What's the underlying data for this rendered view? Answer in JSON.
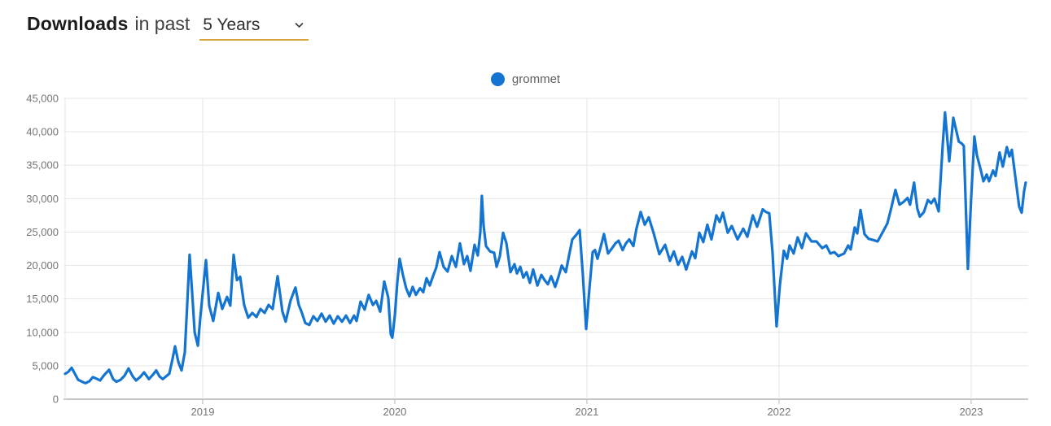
{
  "header": {
    "title": "Downloads",
    "subtitle": "in past",
    "range_select": {
      "value": "5 Years"
    }
  },
  "legend": [
    {
      "label": "grommet",
      "color": "#1474d2"
    }
  ],
  "colors": {
    "series_blue": "#1474d2",
    "select_underline": "#d9a43b",
    "gridline": "#e6e6e6",
    "axis_line": "#b3b3b3",
    "tick_text": "#757575"
  },
  "chart_data": {
    "type": "line",
    "title": "Downloads in past 5 Years",
    "xlabel": "",
    "ylabel": "",
    "interval": "weekly",
    "x_unit": "decimal_year",
    "grid": true,
    "legend_position": "top-center",
    "x_range": [
      2018.284,
      2023.297
    ],
    "y_range": [
      0,
      45000
    ],
    "x_ticks": [
      2019,
      2020,
      2021,
      2022,
      2023
    ],
    "x_tick_labels": [
      "2019",
      "2020",
      "2021",
      "2022",
      "2023"
    ],
    "y_ticks": [
      0,
      5000,
      10000,
      15000,
      20000,
      25000,
      30000,
      35000,
      40000,
      45000
    ],
    "y_tick_labels": [
      "0",
      "5,000",
      "10,000",
      "15,000",
      "20,000",
      "25,000",
      "30,000",
      "35,000",
      "40,000",
      "45,000"
    ],
    "series": [
      {
        "name": "grommet",
        "color": "#1474d2",
        "points": [
          [
            2018.284,
            3800
          ],
          [
            2018.301,
            4100
          ],
          [
            2018.318,
            4700
          ],
          [
            2018.335,
            3800
          ],
          [
            2018.352,
            2900
          ],
          [
            2018.373,
            2600
          ],
          [
            2018.39,
            2400
          ],
          [
            2018.411,
            2700
          ],
          [
            2018.428,
            3300
          ],
          [
            2018.445,
            3100
          ],
          [
            2018.466,
            2800
          ],
          [
            2018.487,
            3600
          ],
          [
            2018.513,
            4400
          ],
          [
            2018.534,
            3000
          ],
          [
            2018.551,
            2600
          ],
          [
            2018.572,
            2900
          ],
          [
            2018.593,
            3500
          ],
          [
            2018.614,
            4600
          ],
          [
            2018.636,
            3400
          ],
          [
            2018.653,
            2800
          ],
          [
            2018.674,
            3300
          ],
          [
            2018.695,
            4000
          ],
          [
            2018.72,
            3000
          ],
          [
            2018.742,
            3700
          ],
          [
            2018.758,
            4300
          ],
          [
            2018.775,
            3400
          ],
          [
            2018.792,
            3000
          ],
          [
            2018.809,
            3400
          ],
          [
            2018.826,
            3800
          ],
          [
            2018.843,
            6000
          ],
          [
            2018.856,
            7900
          ],
          [
            2018.873,
            5600
          ],
          [
            2018.89,
            4300
          ],
          [
            2018.907,
            7000
          ],
          [
            2018.919,
            14000
          ],
          [
            2018.932,
            21600
          ],
          [
            2018.945,
            16000
          ],
          [
            2018.958,
            10000
          ],
          [
            2018.975,
            8000
          ],
          [
            2018.987,
            12000
          ],
          [
            2019.004,
            17000
          ],
          [
            2019.017,
            20800
          ],
          [
            2019.034,
            14000
          ],
          [
            2019.055,
            11700
          ],
          [
            2019.081,
            15900
          ],
          [
            2019.102,
            13500
          ],
          [
            2019.127,
            15300
          ],
          [
            2019.144,
            14000
          ],
          [
            2019.161,
            21600
          ],
          [
            2019.178,
            17800
          ],
          [
            2019.195,
            18300
          ],
          [
            2019.216,
            14100
          ],
          [
            2019.237,
            12200
          ],
          [
            2019.258,
            12900
          ],
          [
            2019.28,
            12300
          ],
          [
            2019.301,
            13500
          ],
          [
            2019.322,
            12900
          ],
          [
            2019.343,
            14100
          ],
          [
            2019.364,
            13500
          ],
          [
            2019.39,
            18400
          ],
          [
            2019.415,
            13100
          ],
          [
            2019.432,
            11600
          ],
          [
            2019.458,
            14800
          ],
          [
            2019.483,
            16700
          ],
          [
            2019.5,
            14100
          ],
          [
            2019.513,
            13200
          ],
          [
            2019.534,
            11400
          ],
          [
            2019.555,
            11100
          ],
          [
            2019.576,
            12400
          ],
          [
            2019.597,
            11700
          ],
          [
            2019.619,
            12800
          ],
          [
            2019.64,
            11600
          ],
          [
            2019.661,
            12500
          ],
          [
            2019.682,
            11300
          ],
          [
            2019.703,
            12400
          ],
          [
            2019.725,
            11600
          ],
          [
            2019.746,
            12500
          ],
          [
            2019.767,
            11400
          ],
          [
            2019.788,
            12500
          ],
          [
            2019.801,
            11700
          ],
          [
            2019.822,
            14600
          ],
          [
            2019.843,
            13400
          ],
          [
            2019.864,
            15600
          ],
          [
            2019.886,
            14100
          ],
          [
            2019.903,
            14700
          ],
          [
            2019.924,
            13100
          ],
          [
            2019.945,
            17600
          ],
          [
            2019.966,
            15200
          ],
          [
            2019.979,
            9700
          ],
          [
            2019.987,
            9200
          ],
          [
            2020.0,
            12500
          ],
          [
            2020.013,
            17400
          ],
          [
            2020.025,
            21000
          ],
          [
            2020.042,
            18600
          ],
          [
            2020.059,
            16600
          ],
          [
            2020.076,
            15400
          ],
          [
            2020.093,
            16800
          ],
          [
            2020.11,
            15600
          ],
          [
            2020.131,
            16600
          ],
          [
            2020.148,
            16000
          ],
          [
            2020.165,
            18100
          ],
          [
            2020.182,
            17000
          ],
          [
            2020.199,
            18400
          ],
          [
            2020.216,
            19700
          ],
          [
            2020.233,
            22000
          ],
          [
            2020.254,
            19800
          ],
          [
            2020.275,
            19100
          ],
          [
            2020.297,
            21400
          ],
          [
            2020.318,
            19800
          ],
          [
            2020.339,
            23300
          ],
          [
            2020.36,
            20200
          ],
          [
            2020.377,
            21400
          ],
          [
            2020.394,
            19200
          ],
          [
            2020.415,
            23100
          ],
          [
            2020.432,
            21500
          ],
          [
            2020.445,
            25000
          ],
          [
            2020.453,
            30400
          ],
          [
            2020.462,
            26000
          ],
          [
            2020.475,
            22900
          ],
          [
            2020.496,
            22100
          ],
          [
            2020.517,
            21900
          ],
          [
            2020.53,
            19800
          ],
          [
            2020.547,
            21400
          ],
          [
            2020.564,
            24900
          ],
          [
            2020.581,
            23300
          ],
          [
            2020.602,
            19000
          ],
          [
            2020.623,
            20200
          ],
          [
            2020.636,
            18800
          ],
          [
            2020.653,
            19800
          ],
          [
            2020.669,
            18200
          ],
          [
            2020.686,
            19000
          ],
          [
            2020.703,
            17400
          ],
          [
            2020.72,
            19400
          ],
          [
            2020.742,
            17000
          ],
          [
            2020.763,
            18600
          ],
          [
            2020.78,
            17800
          ],
          [
            2020.797,
            17200
          ],
          [
            2020.814,
            18400
          ],
          [
            2020.835,
            16800
          ],
          [
            2020.852,
            18300
          ],
          [
            2020.869,
            20000
          ],
          [
            2020.89,
            19000
          ],
          [
            2020.907,
            21500
          ],
          [
            2020.924,
            23900
          ],
          [
            2020.945,
            24600
          ],
          [
            2020.962,
            25300
          ],
          [
            2020.979,
            18500
          ],
          [
            2020.996,
            10500
          ],
          [
            2021.013,
            16500
          ],
          [
            2021.03,
            22000
          ],
          [
            2021.042,
            22300
          ],
          [
            2021.055,
            21000
          ],
          [
            2021.072,
            22800
          ],
          [
            2021.089,
            24700
          ],
          [
            2021.11,
            21800
          ],
          [
            2021.131,
            22600
          ],
          [
            2021.148,
            23300
          ],
          [
            2021.165,
            23700
          ],
          [
            2021.186,
            22300
          ],
          [
            2021.203,
            23300
          ],
          [
            2021.22,
            23900
          ],
          [
            2021.242,
            22900
          ],
          [
            2021.258,
            25500
          ],
          [
            2021.28,
            28000
          ],
          [
            2021.301,
            26100
          ],
          [
            2021.322,
            27200
          ],
          [
            2021.347,
            24900
          ],
          [
            2021.377,
            21700
          ],
          [
            2021.407,
            23100
          ],
          [
            2021.432,
            20700
          ],
          [
            2021.453,
            22100
          ],
          [
            2021.475,
            20100
          ],
          [
            2021.496,
            21300
          ],
          [
            2021.517,
            19400
          ],
          [
            2021.547,
            22100
          ],
          [
            2021.564,
            21100
          ],
          [
            2021.585,
            24900
          ],
          [
            2021.606,
            23500
          ],
          [
            2021.627,
            26100
          ],
          [
            2021.648,
            23900
          ],
          [
            2021.674,
            27500
          ],
          [
            2021.691,
            26500
          ],
          [
            2021.708,
            27900
          ],
          [
            2021.733,
            24900
          ],
          [
            2021.754,
            25900
          ],
          [
            2021.784,
            23900
          ],
          [
            2021.814,
            25500
          ],
          [
            2021.835,
            24300
          ],
          [
            2021.864,
            27500
          ],
          [
            2021.886,
            25800
          ],
          [
            2021.915,
            28400
          ],
          [
            2021.932,
            28000
          ],
          [
            2021.949,
            27800
          ],
          [
            2021.966,
            22000
          ],
          [
            2021.987,
            10900
          ],
          [
            2022.004,
            17000
          ],
          [
            2022.025,
            22200
          ],
          [
            2022.042,
            21000
          ],
          [
            2022.055,
            23000
          ],
          [
            2022.076,
            21800
          ],
          [
            2022.097,
            24200
          ],
          [
            2022.119,
            22600
          ],
          [
            2022.14,
            24800
          ],
          [
            2022.169,
            23600
          ],
          [
            2022.195,
            23600
          ],
          [
            2022.225,
            22600
          ],
          [
            2022.246,
            23000
          ],
          [
            2022.267,
            21800
          ],
          [
            2022.288,
            22000
          ],
          [
            2022.309,
            21400
          ],
          [
            2022.339,
            21800
          ],
          [
            2022.36,
            23000
          ],
          [
            2022.373,
            22400
          ],
          [
            2022.394,
            25700
          ],
          [
            2022.407,
            24800
          ],
          [
            2022.424,
            28300
          ],
          [
            2022.445,
            24700
          ],
          [
            2022.466,
            24000
          ],
          [
            2022.492,
            23800
          ],
          [
            2022.513,
            23600
          ],
          [
            2022.542,
            25100
          ],
          [
            2022.564,
            26300
          ],
          [
            2022.585,
            28700
          ],
          [
            2022.606,
            31300
          ],
          [
            2022.627,
            29100
          ],
          [
            2022.648,
            29500
          ],
          [
            2022.669,
            30100
          ],
          [
            2022.682,
            29100
          ],
          [
            2022.703,
            32400
          ],
          [
            2022.72,
            28500
          ],
          [
            2022.733,
            27300
          ],
          [
            2022.754,
            28000
          ],
          [
            2022.775,
            29800
          ],
          [
            2022.792,
            29300
          ],
          [
            2022.809,
            30000
          ],
          [
            2022.831,
            28100
          ],
          [
            2022.852,
            38000
          ],
          [
            2022.864,
            42900
          ],
          [
            2022.886,
            35600
          ],
          [
            2022.907,
            42100
          ],
          [
            2022.936,
            38500
          ],
          [
            2022.949,
            38300
          ],
          [
            2022.962,
            37900
          ],
          [
            2022.983,
            19500
          ],
          [
            2023.0,
            30000
          ],
          [
            2023.017,
            39300
          ],
          [
            2023.03,
            36500
          ],
          [
            2023.051,
            34200
          ],
          [
            2023.064,
            32600
          ],
          [
            2023.081,
            33600
          ],
          [
            2023.093,
            32600
          ],
          [
            2023.114,
            34200
          ],
          [
            2023.127,
            33400
          ],
          [
            2023.148,
            36900
          ],
          [
            2023.165,
            34800
          ],
          [
            2023.186,
            37700
          ],
          [
            2023.199,
            36300
          ],
          [
            2023.212,
            37300
          ],
          [
            2023.233,
            32600
          ],
          [
            2023.25,
            28800
          ],
          [
            2023.263,
            27900
          ],
          [
            2023.275,
            31000
          ],
          [
            2023.284,
            32400
          ]
        ]
      }
    ]
  }
}
